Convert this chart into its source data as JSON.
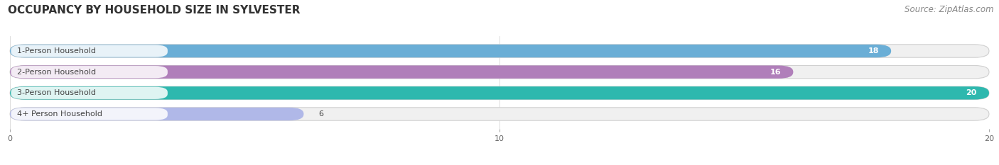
{
  "title": "OCCUPANCY BY HOUSEHOLD SIZE IN SYLVESTER",
  "source": "Source: ZipAtlas.com",
  "categories": [
    "1-Person Household",
    "2-Person Household",
    "3-Person Household",
    "4+ Person Household"
  ],
  "values": [
    18,
    16,
    20,
    6
  ],
  "bar_colors": [
    "#6aaed6",
    "#b07fba",
    "#2eb8ae",
    "#b0b8e8"
  ],
  "background_color": "#ffffff",
  "bar_bg_color": "#f0f0f0",
  "label_box_color": "#ffffff",
  "xlim": [
    0,
    20
  ],
  "xticks": [
    0,
    10,
    20
  ],
  "title_fontsize": 11,
  "source_fontsize": 8.5,
  "label_fontsize": 8,
  "value_fontsize": 8,
  "bar_height": 0.62,
  "figsize": [
    14.06,
    2.33
  ],
  "dpi": 100
}
